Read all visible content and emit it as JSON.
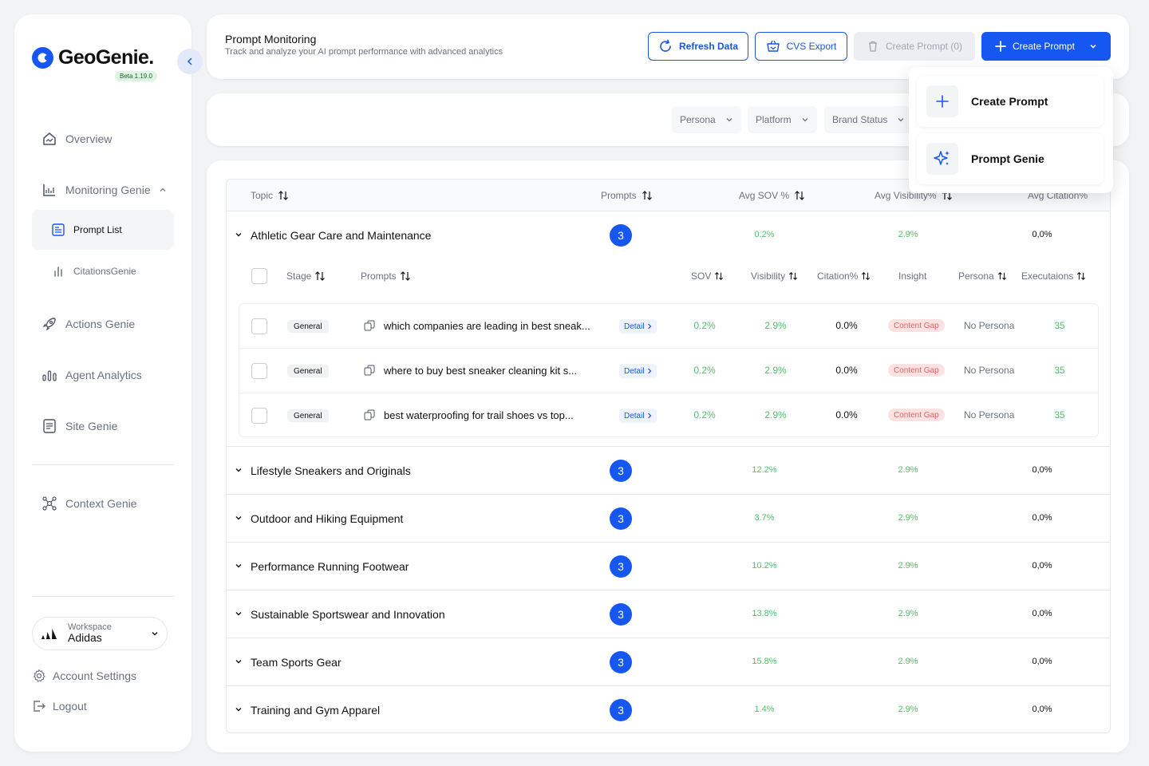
{
  "app": {
    "name": "GeoGenie.",
    "version": "Beta 1.19.0"
  },
  "sidebar": {
    "nav": {
      "overview": "Overview",
      "monitoring": "Monitoring Genie",
      "prompt_list": "Prompt List",
      "citations": "CitationsGenie",
      "actions": "Actions Genie",
      "agent_analytics": "Agent Analytics",
      "site_genie": "Site Genie",
      "context_genie": "Context Genie"
    },
    "workspace": {
      "label": "Workspace",
      "value": "Adidas"
    },
    "account_settings": "Account Settings",
    "logout": "Logout"
  },
  "header": {
    "title": "Prompt Monitoring",
    "subtitle": "Track and analyze your AI prompt performance with advanced analytics",
    "refresh_label": "Refresh Data",
    "export_label": "CVS Export",
    "create_count_label": "Create Prompt (0)",
    "create_label": "Create Prompt"
  },
  "filters": {
    "persona": "Persona",
    "platform": "Platform",
    "brand_status": "Brand Status"
  },
  "dropdown": {
    "create_prompt": "Create Prompt",
    "prompt_genie": "Prompt Genie"
  },
  "table": {
    "columns": {
      "topic": "Topic",
      "prompts": "Prompts",
      "avg_sov": "Avg SOV %",
      "avg_visibility": "Avg Visibility%",
      "avg_citation": "Avg Citation%"
    },
    "sub_columns": {
      "stage": "Stage",
      "prompts": "Prompts",
      "sov": "SOV",
      "visibility": "Visibility",
      "citation": "Citation%",
      "insight": "Insight",
      "persona": "Persona",
      "executions": "Executaions"
    },
    "topics": [
      {
        "name": "Athletic Gear Care and Maintenance",
        "count": "3",
        "sov": "0.2%",
        "visibility": "2.9%",
        "citation": "0,0%"
      },
      {
        "name": "Lifestyle Sneakers and Originals",
        "count": "3",
        "sov": "12.2%",
        "visibility": "2.9%",
        "citation": "0,0%"
      },
      {
        "name": "Outdoor and Hiking Equipment",
        "count": "3",
        "sov": "3.7%",
        "visibility": "2.9%",
        "citation": "0,0%"
      },
      {
        "name": "Performance Running Footwear",
        "count": "3",
        "sov": "10.2%",
        "visibility": "2.9%",
        "citation": "0,0%"
      },
      {
        "name": "Sustainable Sportswear and Innovation",
        "count": "3",
        "sov": "13.8%",
        "visibility": "2.9%",
        "citation": "0,0%"
      },
      {
        "name": "Team Sports Gear",
        "count": "3",
        "sov": "15.8%",
        "visibility": "2.9%",
        "citation": "0,0%"
      },
      {
        "name": "Training and Gym Apparel",
        "count": "3",
        "sov": "1.4%",
        "visibility": "2.9%",
        "citation": "0,0%"
      }
    ],
    "sub_rows": [
      {
        "stage": "General",
        "prompt": "which companies are leading in best sneak...",
        "detail": "Detail",
        "sov": "0.2%",
        "visibility": "2.9%",
        "citation": "0.0%",
        "insight": "Content Gap",
        "persona": "No Persona",
        "executions": "35"
      },
      {
        "stage": "General",
        "prompt": "where to buy best sneaker cleaning kit s...",
        "detail": "Detail",
        "sov": "0.2%",
        "visibility": "2.9%",
        "citation": "0.0%",
        "insight": "Content Gap",
        "persona": "No Persona",
        "executions": "35"
      },
      {
        "stage": "General",
        "prompt": "best waterproofing for trail shoes vs top...",
        "detail": "Detail",
        "sov": "0.2%",
        "visibility": "2.9%",
        "citation": "0.0%",
        "insight": "Content Gap",
        "persona": "No Persona",
        "executions": "35"
      }
    ]
  },
  "colors": {
    "primary": "#1557f0",
    "positive": "#4ec16a",
    "insight_bg": "#fde2e2",
    "insight_text": "#e06666"
  }
}
